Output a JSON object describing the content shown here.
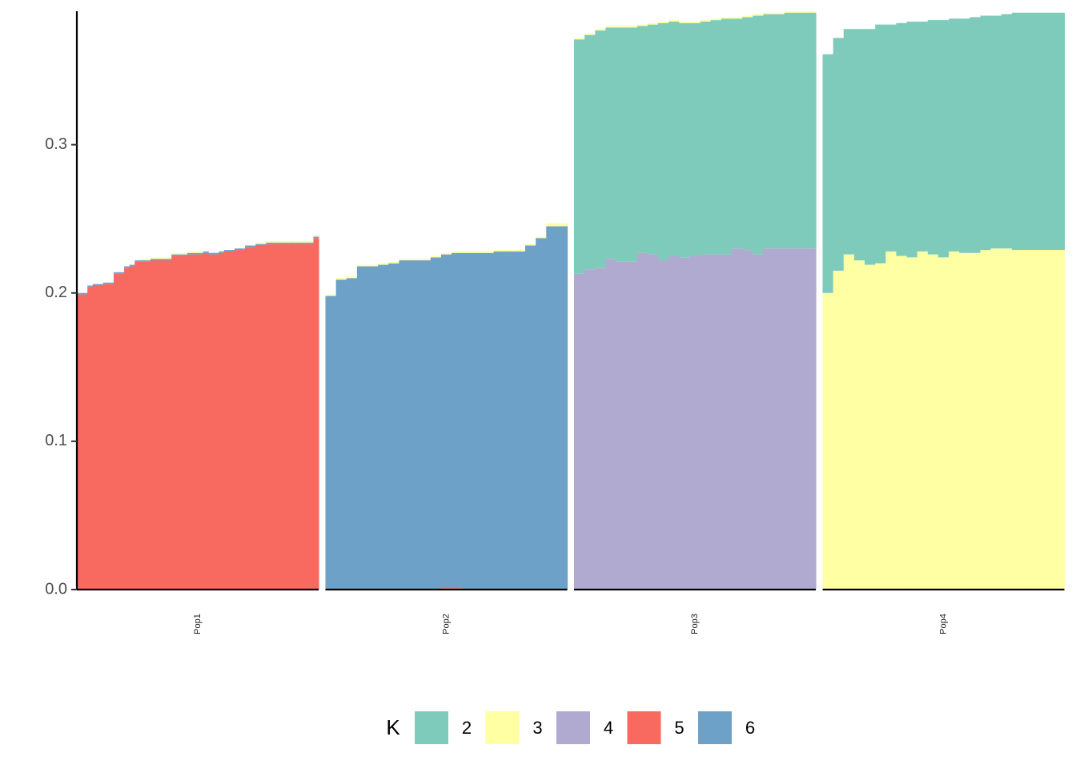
{
  "chart_data": {
    "type": "bar",
    "subtype": "stacked-admixture",
    "title": "",
    "xlabel": "",
    "ylabel": "",
    "ylim": [
      0,
      0.39
    ],
    "yticks": [
      "0.0",
      "0.1",
      "0.2",
      "0.3"
    ],
    "ytick_values": [
      0,
      0.1,
      0.2,
      0.3
    ],
    "grid": false,
    "legend": {
      "title": "K",
      "position": "bottom",
      "entries": [
        {
          "key": "2",
          "label": "2",
          "color": "#7fcbbb"
        },
        {
          "key": "3",
          "label": "3",
          "color": "#ffffa3"
        },
        {
          "key": "4",
          "label": "4",
          "color": "#b1aad0"
        },
        {
          "key": "5",
          "label": "5",
          "color": "#f8695f"
        },
        {
          "key": "6",
          "label": "6",
          "color": "#6ea1c8"
        }
      ]
    },
    "facets": [
      {
        "label": "Pop1",
        "series": [
          {
            "key": "5",
            "values": [
              0.199,
              0.199,
              0.204,
              0.205,
              0.205,
              0.206,
              0.206,
              0.213,
              0.213,
              0.217,
              0.218,
              0.221,
              0.221,
              0.221,
              0.222,
              0.222,
              0.222,
              0.222,
              0.225,
              0.225,
              0.225,
              0.226,
              0.226,
              0.226,
              0.227,
              0.226,
              0.226,
              0.227,
              0.228,
              0.228,
              0.229,
              0.229,
              0.231,
              0.231,
              0.232,
              0.232,
              0.233,
              0.233,
              0.233,
              0.233,
              0.233,
              0.233,
              0.233,
              0.233,
              0.233,
              0.237
            ]
          },
          {
            "key": "6",
            "values": [
              0.001,
              0.001,
              0.001,
              0.001,
              0.001,
              0.001,
              0.001,
              0.001,
              0.001,
              0.001,
              0.001,
              0.001,
              0.001,
              0.001,
              0.001,
              0.001,
              0.001,
              0.001,
              0.001,
              0.001,
              0.001,
              0.001,
              0.001,
              0.001,
              0.001,
              0.001,
              0.001,
              0.001,
              0.001,
              0.001,
              0.001,
              0.001,
              0.001,
              0.001,
              0.001,
              0.001,
              0.001,
              0.001,
              0.001,
              0.001,
              0.001,
              0.001,
              0.001,
              0.001,
              0.001,
              0.001
            ]
          },
          {
            "key": "3",
            "values": [
              0,
              0,
              0,
              0,
              0,
              0,
              0,
              0,
              0,
              0,
              0,
              0,
              0.001,
              0.001,
              0.001,
              0.001,
              0.001,
              0.001,
              0.001,
              0.001,
              0.001,
              0.001,
              0.001,
              0.001,
              0,
              0,
              0,
              0,
              0,
              0,
              0,
              0,
              0,
              0,
              0.001,
              0.001,
              0.001,
              0.001,
              0.001,
              0.001,
              0.001,
              0.001,
              0.001,
              0.001,
              0.001,
              0.001
            ]
          }
        ]
      },
      {
        "label": "Pop2",
        "series": [
          {
            "key": "5",
            "values": [
              0,
              0,
              0,
              0,
              0,
              0,
              0,
              0,
              0,
              0,
              0,
              0,
              0,
              0,
              0,
              0,
              0,
              0,
              0,
              0,
              0,
              0,
              0.001,
              0.001,
              0.001,
              0.001,
              0,
              0,
              0,
              0,
              0,
              0,
              0,
              0,
              0,
              0,
              0,
              0,
              0,
              0,
              0,
              0,
              0,
              0,
              0,
              0
            ]
          },
          {
            "key": "6",
            "values": [
              0.198,
              0.198,
              0.209,
              0.209,
              0.21,
              0.21,
              0.218,
              0.218,
              0.218,
              0.218,
              0.219,
              0.219,
              0.22,
              0.22,
              0.222,
              0.222,
              0.222,
              0.222,
              0.222,
              0.222,
              0.224,
              0.224,
              0.225,
              0.225,
              0.226,
              0.226,
              0.227,
              0.227,
              0.227,
              0.227,
              0.227,
              0.227,
              0.228,
              0.228,
              0.228,
              0.228,
              0.228,
              0.228,
              0.232,
              0.232,
              0.237,
              0.237,
              0.245,
              0.245,
              0.245,
              0.245
            ]
          },
          {
            "key": "3",
            "values": [
              0.001,
              0.001,
              0.001,
              0.001,
              0.001,
              0.001,
              0.001,
              0.001,
              0.001,
              0.001,
              0.001,
              0.001,
              0.001,
              0.001,
              0.001,
              0.001,
              0.001,
              0.001,
              0.001,
              0.001,
              0.001,
              0.001,
              0.001,
              0.001,
              0.001,
              0.001,
              0.001,
              0.001,
              0.001,
              0.001,
              0.001,
              0.001,
              0.001,
              0.001,
              0.001,
              0.001,
              0.001,
              0.001,
              0.001,
              0.001,
              0.001,
              0.001,
              0.002,
              0.002,
              0.002,
              0.002
            ]
          }
        ]
      },
      {
        "label": "Pop3",
        "series": [
          {
            "key": "4",
            "values": [
              0.213,
              0.213,
              0.216,
              0.216,
              0.217,
              0.217,
              0.223,
              0.223,
              0.221,
              0.221,
              0.221,
              0.221,
              0.227,
              0.227,
              0.226,
              0.226,
              0.222,
              0.222,
              0.225,
              0.225,
              0.224,
              0.224,
              0.225,
              0.225,
              0.226,
              0.226,
              0.226,
              0.226,
              0.226,
              0.226,
              0.23,
              0.23,
              0.229,
              0.229,
              0.226,
              0.226,
              0.23,
              0.23,
              0.23,
              0.23,
              0.23,
              0.23,
              0.23,
              0.23,
              0.23,
              0.23
            ]
          },
          {
            "key": "2",
            "values": [
              0.158,
              0.158,
              0.158,
              0.158,
              0.16,
              0.16,
              0.156,
              0.156,
              0.158,
              0.158,
              0.158,
              0.158,
              0.153,
              0.153,
              0.155,
              0.155,
              0.16,
              0.16,
              0.158,
              0.158,
              0.158,
              0.158,
              0.157,
              0.157,
              0.157,
              0.157,
              0.158,
              0.158,
              0.159,
              0.159,
              0.155,
              0.155,
              0.157,
              0.157,
              0.161,
              0.161,
              0.158,
              0.158,
              0.158,
              0.158,
              0.159,
              0.159,
              0.159,
              0.159,
              0.159,
              0.159
            ]
          },
          {
            "key": "3",
            "values": [
              0.001,
              0.001,
              0.001,
              0.001,
              0.001,
              0.001,
              0.001,
              0.001,
              0.001,
              0.001,
              0.001,
              0.001,
              0.001,
              0.001,
              0.001,
              0.001,
              0.001,
              0.001,
              0.001,
              0.001,
              0.001,
              0.001,
              0.001,
              0.001,
              0.001,
              0.001,
              0.001,
              0.001,
              0.001,
              0.001,
              0.001,
              0.001,
              0.001,
              0.001,
              0.001,
              0.001,
              0.001,
              0.001,
              0.001,
              0.001,
              0.001,
              0.001,
              0.001,
              0.001,
              0.001,
              0.001
            ]
          }
        ]
      },
      {
        "label": "Pop4",
        "series": [
          {
            "key": "3",
            "values": [
              0.2,
              0.2,
              0.215,
              0.215,
              0.226,
              0.226,
              0.222,
              0.222,
              0.219,
              0.219,
              0.22,
              0.22,
              0.228,
              0.228,
              0.225,
              0.225,
              0.224,
              0.224,
              0.228,
              0.228,
              0.226,
              0.226,
              0.224,
              0.224,
              0.228,
              0.228,
              0.227,
              0.227,
              0.227,
              0.227,
              0.229,
              0.229,
              0.23,
              0.23,
              0.23,
              0.23,
              0.229,
              0.229,
              0.229,
              0.229,
              0.229,
              0.229,
              0.229,
              0.229,
              0.229,
              0.229
            ]
          },
          {
            "key": "2",
            "values": [
              0.161,
              0.161,
              0.157,
              0.157,
              0.152,
              0.152,
              0.156,
              0.156,
              0.159,
              0.159,
              0.161,
              0.161,
              0.153,
              0.153,
              0.157,
              0.157,
              0.159,
              0.159,
              0.155,
              0.155,
              0.158,
              0.158,
              0.16,
              0.16,
              0.157,
              0.157,
              0.158,
              0.158,
              0.159,
              0.159,
              0.158,
              0.158,
              0.157,
              0.157,
              0.158,
              0.158,
              0.16,
              0.16,
              0.16,
              0.16,
              0.16,
              0.16,
              0.16,
              0.16,
              0.16,
              0.16
            ]
          }
        ]
      }
    ]
  }
}
